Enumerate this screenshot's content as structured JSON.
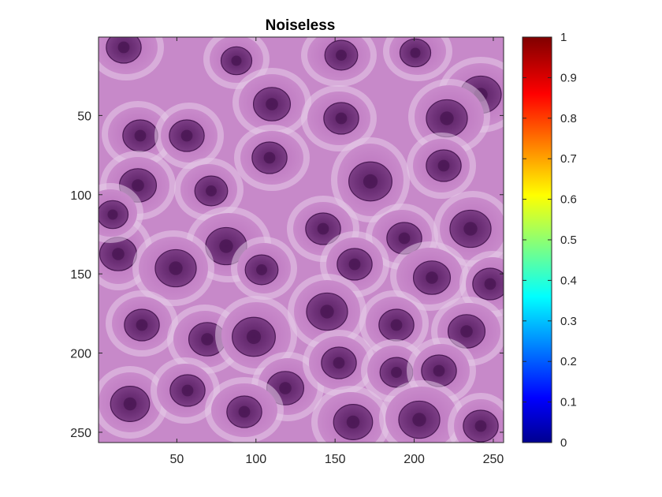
{
  "figure": {
    "title": "Noiseless",
    "image": {
      "description_name": "histology-cell-image",
      "dominant_colors": [
        "#c27ec4",
        "#a865ad",
        "#6c2f76",
        "#e8d2ea"
      ]
    },
    "x_axis": {
      "ticks": [
        "50",
        "100",
        "150",
        "200",
        "250"
      ],
      "values": [
        50,
        100,
        150,
        200,
        250
      ],
      "range": [
        0.5,
        256.5
      ]
    },
    "y_axis": {
      "ticks": [
        "50",
        "100",
        "150",
        "200",
        "250"
      ],
      "values": [
        50,
        100,
        150,
        200,
        250
      ],
      "range": [
        0.5,
        256.5
      ],
      "reversed": true
    },
    "colorbar": {
      "colormap": "jet",
      "ticks": [
        "0",
        "0.1",
        "0.2",
        "0.3",
        "0.4",
        "0.5",
        "0.6",
        "0.7",
        "0.8",
        "0.9",
        "1"
      ],
      "values": [
        0,
        0.1,
        0.2,
        0.3,
        0.4,
        0.5,
        0.6,
        0.7,
        0.8,
        0.9,
        1
      ],
      "range": [
        0,
        1
      ]
    }
  }
}
